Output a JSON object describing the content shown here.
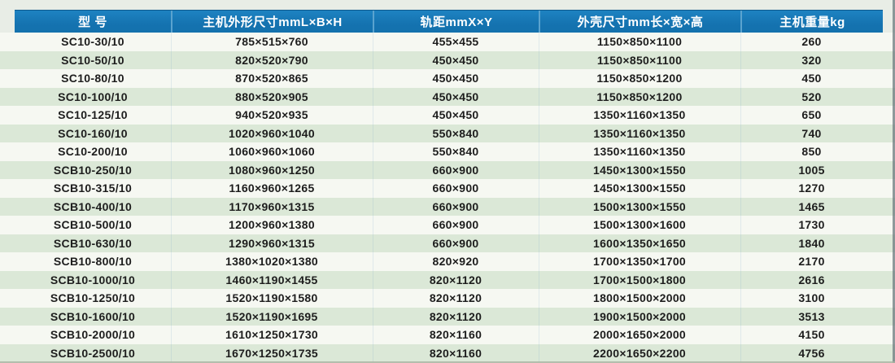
{
  "table": {
    "columns": [
      "型  号",
      "主机外形尺寸mmL×B×H",
      "轨距mmX×Y",
      "外壳尺寸mm长×宽×高",
      "主机重量kg"
    ],
    "rows": [
      [
        "SC10-30/10",
        "785×515×760",
        "455×455",
        "1150×850×1100",
        "260"
      ],
      [
        "SC10-50/10",
        "820×520×790",
        "450×450",
        "1150×850×1100",
        "320"
      ],
      [
        "SC10-80/10",
        "870×520×865",
        "450×450",
        "1150×850×1200",
        "450"
      ],
      [
        "SC10-100/10",
        "880×520×905",
        "450×450",
        "1150×850×1200",
        "520"
      ],
      [
        "SC10-125/10",
        "940×520×935",
        "450×450",
        "1350×1160×1350",
        "650"
      ],
      [
        "SC10-160/10",
        "1020×960×1040",
        "550×840",
        "1350×1160×1350",
        "740"
      ],
      [
        "SC10-200/10",
        "1060×960×1060",
        "550×840",
        "1350×1160×1350",
        "850"
      ],
      [
        "SCB10-250/10",
        "1080×960×1250",
        "660×900",
        "1450×1300×1550",
        "1005"
      ],
      [
        "SCB10-315/10",
        "1160×960×1265",
        "660×900",
        "1450×1300×1550",
        "1270"
      ],
      [
        "SCB10-400/10",
        "1170×960×1315",
        "660×900",
        "1500×1300×1550",
        "1465"
      ],
      [
        "SCB10-500/10",
        "1200×960×1380",
        "660×900",
        "1500×1300×1600",
        "1730"
      ],
      [
        "SCB10-630/10",
        "1290×960×1315",
        "660×900",
        "1600×1350×1650",
        "1840"
      ],
      [
        "SCB10-800/10",
        "1380×1020×1380",
        "820×920",
        "1700×1350×1700",
        "2170"
      ],
      [
        "SCB10-1000/10",
        "1460×1190×1455",
        "820×1120",
        "1700×1500×1800",
        "2616"
      ],
      [
        "SCB10-1250/10",
        "1520×1190×1580",
        "820×1120",
        "1800×1500×2000",
        "3100"
      ],
      [
        "SCB10-1600/10",
        "1520×1190×1695",
        "820×1120",
        "1900×1500×2000",
        "3513"
      ],
      [
        "SCB10-2000/10",
        "1610×1250×1730",
        "820×1160",
        "2000×1650×2000",
        "4150"
      ],
      [
        "SCB10-2500/10",
        "1670×1250×1735",
        "820×1160",
        "2200×1650×2200",
        "4756"
      ]
    ]
  },
  "colors": {
    "header_bg": "#1573b0",
    "header_divider": "#5aa3cf",
    "header_text": "#ffffff",
    "stripe_white": "#f6f8f2",
    "stripe_green": "#dbe8d7",
    "body_text": "#1d1d1d",
    "page_bg": "#e8ede6"
  }
}
